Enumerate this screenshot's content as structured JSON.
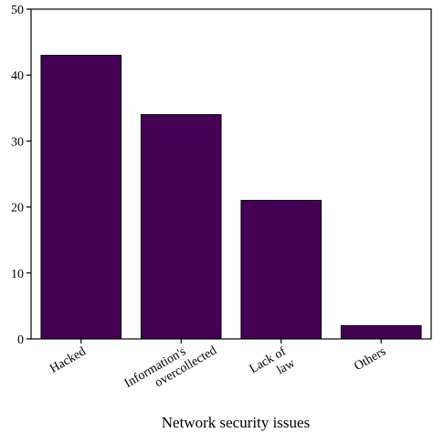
{
  "chart_data": {
    "type": "bar",
    "categories": [
      [
        "Hacked"
      ],
      [
        "Information's",
        "overcollected"
      ],
      [
        "Lack of",
        "law"
      ],
      [
        "Others"
      ]
    ],
    "values": [
      43,
      34,
      21,
      2
    ],
    "xlabel": "Network security issues",
    "ylabel": "",
    "ylim": [
      0,
      50
    ],
    "yticks": [
      0,
      10,
      20,
      30,
      40,
      50
    ],
    "bar_color": "#440154",
    "grid": false
  }
}
